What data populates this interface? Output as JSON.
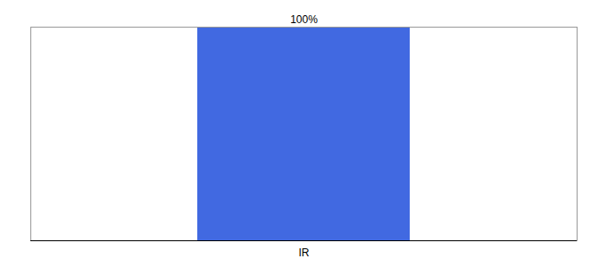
{
  "chart_data": {
    "type": "bar",
    "categories": [
      "IR"
    ],
    "values": [
      100
    ],
    "value_labels": [
      "100%"
    ],
    "data_labels": true,
    "color": "#4169E1",
    "ylim": [
      0,
      100
    ],
    "tick_labels": "x"
  }
}
